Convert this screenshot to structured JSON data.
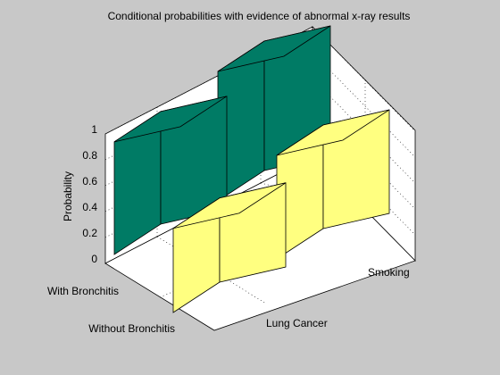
{
  "chart_data": {
    "type": "bar3",
    "title": "Conditional probabilities with evidence of abnormal x-ray results",
    "zlabel": "Probability",
    "zlim": [
      0,
      1
    ],
    "zticks": [
      "0",
      "0.2",
      "0.4",
      "0.6",
      "0.8",
      "1"
    ],
    "row_labels": [
      "With Bronchitis",
      "Without Bronchitis"
    ],
    "column_labels": [
      "Lung Cancer",
      "Smoking"
    ],
    "values": [
      [
        0.87,
        1.0
      ],
      [
        0.65,
        0.8
      ]
    ],
    "grid": true,
    "colors": {
      "background": "#c8c8c8",
      "axes": "#ffffff",
      "with_bronchitis_bars": "#007b65",
      "without_bronchitis_bars": "#ffff80"
    }
  }
}
